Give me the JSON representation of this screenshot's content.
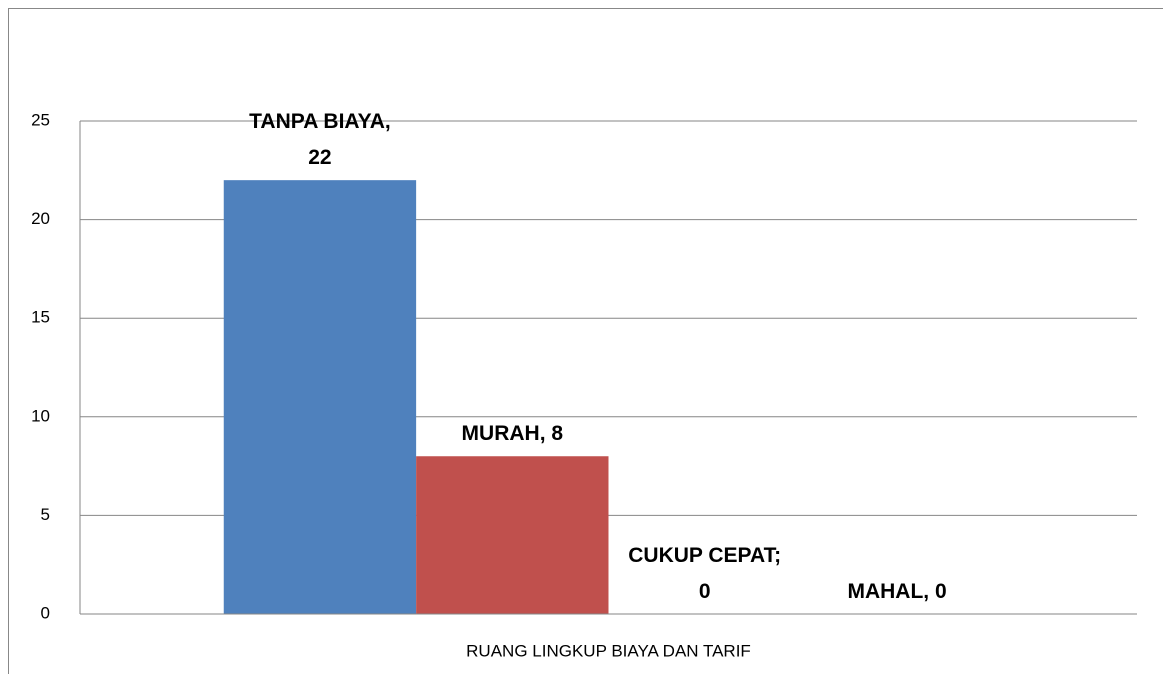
{
  "chart_data": {
    "type": "bar",
    "categories": [
      "RUANG LINGKUP BIAYA DAN TARIF"
    ],
    "series": [
      {
        "color": "#4f81bd",
        "values": [
          22
        ],
        "value_labels": [
          "TANPA BIAYA, 22"
        ]
      },
      {
        "color": "#c0504d",
        "values": [
          8
        ],
        "value_labels": [
          "MURAH, 8"
        ]
      },
      {
        "color": "#9bbb59",
        "values": [
          0
        ],
        "value_labels": [
          "CUKUP CEPAT; 0"
        ]
      },
      {
        "color": "#8064a2",
        "values": [
          0
        ],
        "value_labels": [
          "MAHAL, 0"
        ]
      }
    ],
    "ylim": [
      0,
      25
    ],
    "yticks": [
      0,
      5,
      10,
      15,
      20,
      25
    ],
    "grid": true
  }
}
